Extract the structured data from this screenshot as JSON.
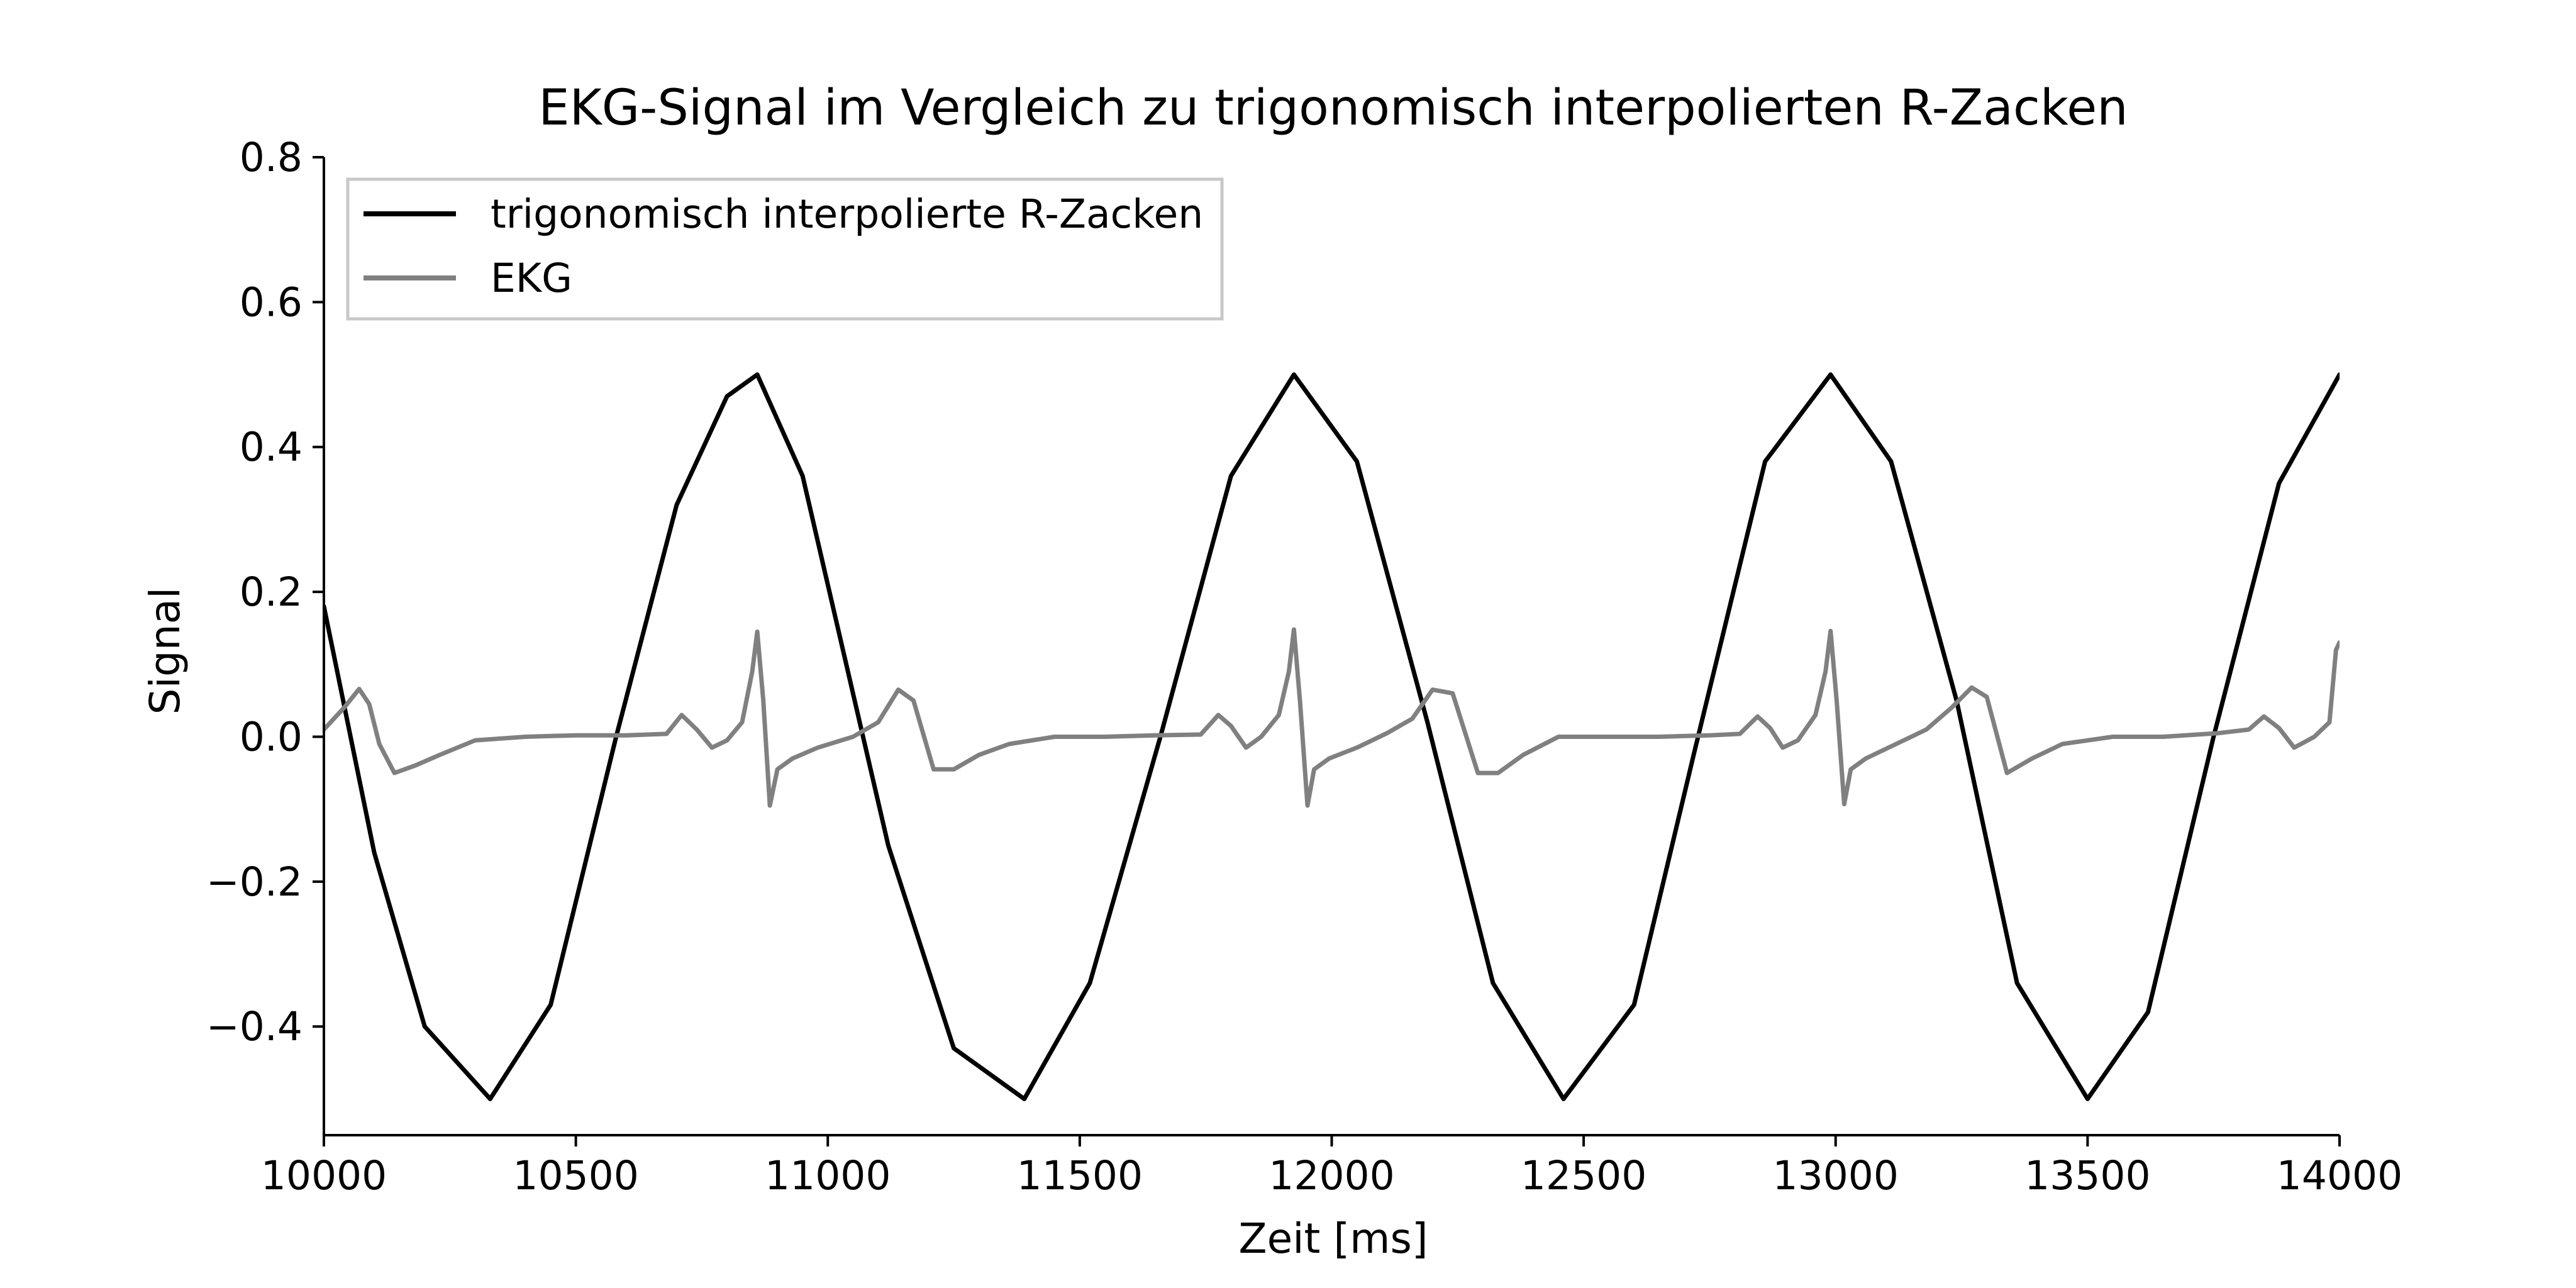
{
  "chart_data": {
    "type": "line",
    "title": "EKG-Signal im Vergleich zu trigonomisch interpolierten R-Zacken",
    "xlabel": "Zeit [ms]",
    "ylabel": "Signal",
    "xlim": [
      10000,
      14000
    ],
    "ylim": [
      -0.55,
      0.8
    ],
    "xticks": [
      10000,
      10500,
      11000,
      11500,
      12000,
      12500,
      13000,
      13500,
      14000
    ],
    "xtick_labels": [
      "10000",
      "10500",
      "11000",
      "11500",
      "12000",
      "12500",
      "13000",
      "13500",
      "14000"
    ],
    "yticks": [
      -0.4,
      -0.2,
      0.0,
      0.2,
      0.4,
      0.6,
      0.8
    ],
    "ytick_labels": [
      "−0.4",
      "−0.2",
      "0.0",
      "0.2",
      "0.4",
      "0.6",
      "0.8"
    ],
    "grid": false,
    "legend_position": "top-left",
    "series": [
      {
        "name": "trigonomisch interpolierte R-Zacken",
        "color": "#000000",
        "description": "cosine with amplitude 0.5, peaks at R-waves",
        "x": [
          10000,
          10100,
          10200,
          10330,
          10450,
          10580,
          10700,
          10800,
          10860,
          10950,
          11050,
          11120,
          11250,
          11390,
          11520,
          11660,
          11800,
          11925,
          12050,
          12190,
          12320,
          12460,
          12600,
          12720,
          12860,
          12990,
          13110,
          13240,
          13360,
          13500,
          13620,
          13750,
          13880,
          14000
        ],
        "y": [
          0.18,
          -0.16,
          -0.4,
          -0.5,
          -0.37,
          0.0,
          0.32,
          0.47,
          0.5,
          0.36,
          0.06,
          -0.15,
          -0.43,
          -0.5,
          -0.34,
          0.0,
          0.36,
          0.5,
          0.38,
          0.02,
          -0.34,
          -0.5,
          -0.37,
          -0.02,
          0.38,
          0.5,
          0.38,
          0.05,
          -0.34,
          -0.5,
          -0.38,
          0.0,
          0.35,
          0.5
        ]
      },
      {
        "name": "EKG",
        "color": "#808080",
        "description": "ECG trace with R-peaks near 10860, 11925, 12990 ms",
        "x": [
          10000,
          10040,
          10070,
          10090,
          10110,
          10140,
          10180,
          10230,
          10300,
          10400,
          10500,
          10600,
          10680,
          10710,
          10740,
          10770,
          10800,
          10830,
          10850,
          10860,
          10872,
          10885,
          10900,
          10930,
          10980,
          11050,
          11100,
          11140,
          11170,
          11210,
          11250,
          11300,
          11360,
          11450,
          11550,
          11650,
          11740,
          11775,
          11800,
          11830,
          11860,
          11895,
          11915,
          11925,
          11937,
          11952,
          11965,
          11995,
          12050,
          12110,
          12160,
          12200,
          12240,
          12290,
          12330,
          12380,
          12450,
          12550,
          12650,
          12750,
          12810,
          12845,
          12870,
          12895,
          12925,
          12960,
          12980,
          12990,
          13002,
          13017,
          13030,
          13060,
          13120,
          13180,
          13230,
          13270,
          13300,
          13340,
          13390,
          13450,
          13550,
          13650,
          13760,
          13820,
          13850,
          13880,
          13910,
          13950,
          13980,
          13993,
          14000
        ],
        "y": [
          0.01,
          0.04,
          0.066,
          0.045,
          -0.01,
          -0.05,
          -0.04,
          -0.025,
          -0.005,
          0.0,
          0.002,
          0.002,
          0.004,
          0.03,
          0.01,
          -0.015,
          -0.005,
          0.02,
          0.09,
          0.145,
          0.05,
          -0.095,
          -0.045,
          -0.03,
          -0.015,
          0.0,
          0.02,
          0.065,
          0.05,
          -0.045,
          -0.045,
          -0.025,
          -0.01,
          0.0,
          0.0,
          0.002,
          0.003,
          0.03,
          0.015,
          -0.015,
          0.0,
          0.03,
          0.09,
          0.148,
          0.05,
          -0.095,
          -0.045,
          -0.03,
          -0.015,
          0.005,
          0.025,
          0.065,
          0.06,
          -0.05,
          -0.05,
          -0.025,
          0.0,
          0.0,
          0.0,
          0.002,
          0.004,
          0.028,
          0.012,
          -0.015,
          -0.005,
          0.03,
          0.09,
          0.146,
          0.05,
          -0.093,
          -0.045,
          -0.03,
          -0.01,
          0.01,
          0.04,
          0.068,
          0.055,
          -0.05,
          -0.03,
          -0.01,
          0.0,
          0.0,
          0.005,
          0.01,
          0.028,
          0.012,
          -0.015,
          0.0,
          0.02,
          0.12,
          0.13
        ]
      }
    ]
  }
}
